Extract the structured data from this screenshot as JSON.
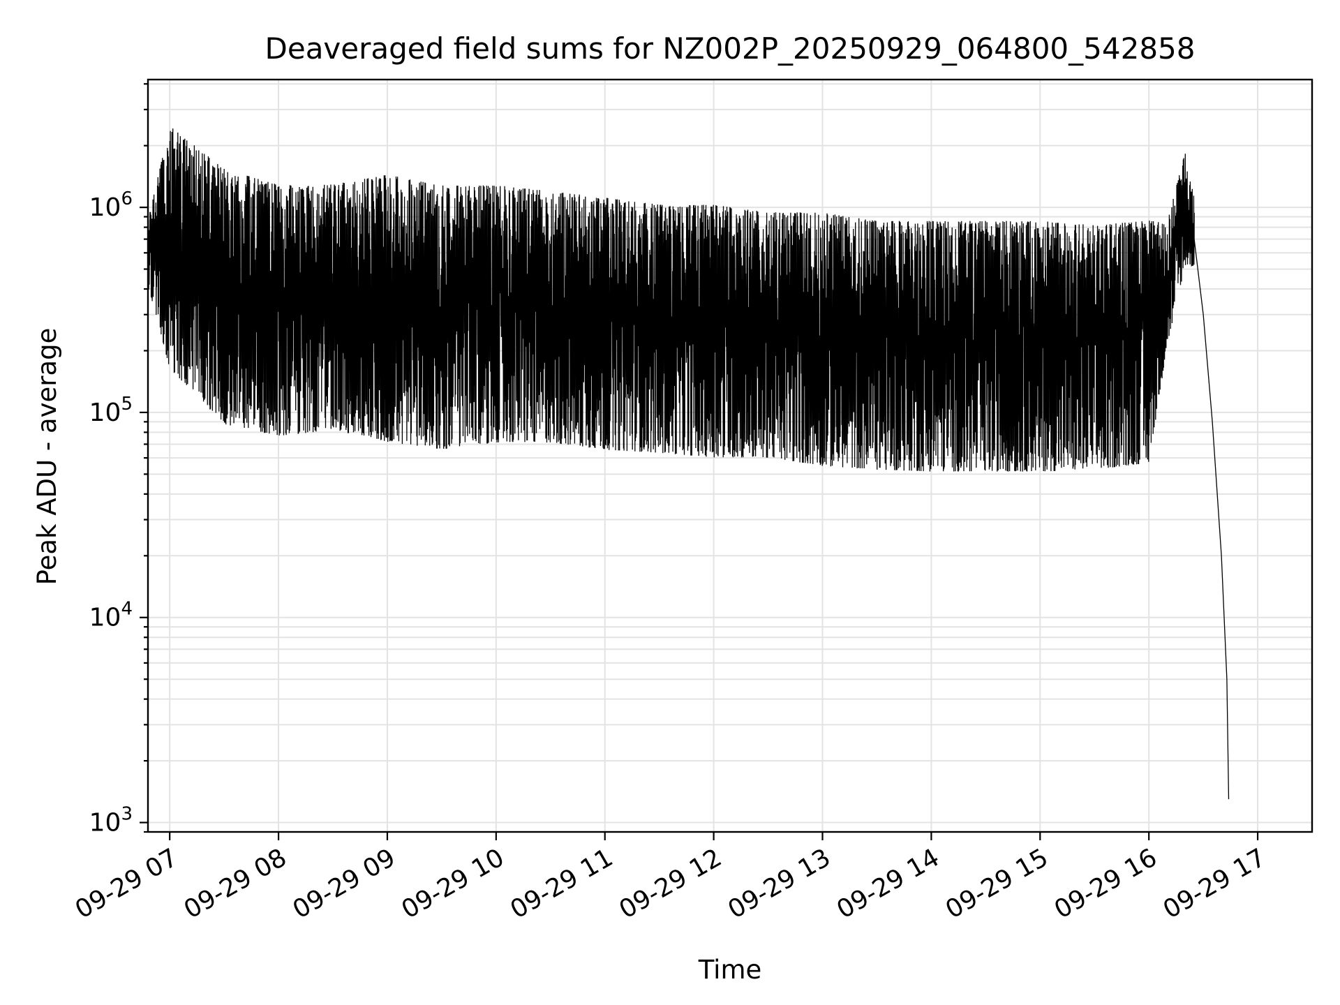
{
  "chart_data": {
    "type": "line",
    "title": "Deaveraged field sums for NZ002P_20250929_064800_542858",
    "xlabel": "Time",
    "ylabel": "Peak ADU - average",
    "yscale": "log",
    "xlim": [
      "2025-09-29 06:48",
      "2025-09-29 17:30"
    ],
    "ylim": [
      900,
      4200000
    ],
    "grid": "major and minor, light gray",
    "x_ticks": [
      "09-29 07",
      "09-29 08",
      "09-29 09",
      "09-29 10",
      "09-29 11",
      "09-29 12",
      "09-29 13",
      "09-29 14",
      "09-29 15",
      "09-29 16",
      "09-29 17"
    ],
    "y_ticks": [
      {
        "value": 1000,
        "base": "10",
        "exp": "3"
      },
      {
        "value": 10000,
        "base": "10",
        "exp": "4"
      },
      {
        "value": 100000,
        "base": "10",
        "exp": "5"
      },
      {
        "value": 1000000,
        "base": "10",
        "exp": "6"
      }
    ],
    "series": [
      {
        "color": "#000000",
        "envelope": [
          {
            "t": "2025-09-29 06:48",
            "low": 400000,
            "high": 900000
          },
          {
            "t": "2025-09-29 07:00",
            "low": 150000,
            "high": 2900000
          },
          {
            "t": "2025-09-29 07:30",
            "low": 80000,
            "high": 1800000
          },
          {
            "t": "2025-09-29 08:00",
            "low": 70000,
            "high": 1500000
          },
          {
            "t": "2025-09-29 08:30",
            "low": 75000,
            "high": 1500000
          },
          {
            "t": "2025-09-29 09:00",
            "low": 65000,
            "high": 1700000
          },
          {
            "t": "2025-09-29 09:30",
            "low": 60000,
            "high": 1500000
          },
          {
            "t": "2025-09-29 10:00",
            "low": 65000,
            "high": 1500000
          },
          {
            "t": "2025-09-29 10:30",
            "low": 65000,
            "high": 1400000
          },
          {
            "t": "2025-09-29 11:00",
            "low": 60000,
            "high": 1300000
          },
          {
            "t": "2025-09-29 11:30",
            "low": 58000,
            "high": 1200000
          },
          {
            "t": "2025-09-29 12:00",
            "low": 55000,
            "high": 1200000
          },
          {
            "t": "2025-09-29 12:30",
            "low": 55000,
            "high": 1100000
          },
          {
            "t": "2025-09-29 13:00",
            "low": 50000,
            "high": 1100000
          },
          {
            "t": "2025-09-29 13:30",
            "low": 48000,
            "high": 1000000
          },
          {
            "t": "2025-09-29 14:00",
            "low": 47000,
            "high": 1000000
          },
          {
            "t": "2025-09-29 14:30",
            "low": 47000,
            "high": 1000000
          },
          {
            "t": "2025-09-29 15:00",
            "low": 47000,
            "high": 1000000
          },
          {
            "t": "2025-09-29 15:30",
            "low": 48000,
            "high": 950000
          },
          {
            "t": "2025-09-29 16:00",
            "low": 52000,
            "high": 1000000
          },
          {
            "t": "2025-09-29 16:10",
            "low": 200000,
            "high": 900000
          },
          {
            "t": "2025-09-29 16:20",
            "low": 500000,
            "high": 2000000
          },
          {
            "t": "2025-09-29 16:25",
            "low": 500000,
            "high": 1200000
          }
        ],
        "tail": [
          {
            "t": "2025-09-29 16:25",
            "y": 700000
          },
          {
            "t": "2025-09-29 16:30",
            "y": 300000
          },
          {
            "t": "2025-09-29 16:35",
            "y": 90000
          },
          {
            "t": "2025-09-29 16:40",
            "y": 20000
          },
          {
            "t": "2025-09-29 16:43",
            "y": 5000
          },
          {
            "t": "2025-09-29 16:44",
            "y": 1300
          }
        ]
      }
    ]
  }
}
